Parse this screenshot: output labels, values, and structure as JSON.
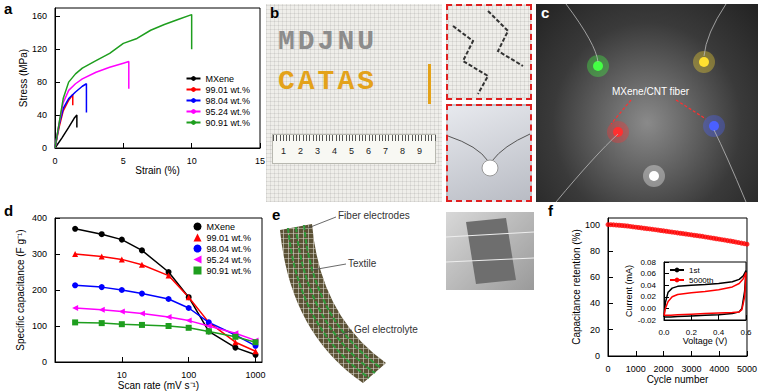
{
  "chart_data": [
    {
      "label": "a",
      "type": "line",
      "x_label": "Strain (%)",
      "y_label": "Stress (MPa)",
      "xlim": [
        0,
        15
      ],
      "xticks": [
        0,
        5,
        10,
        15
      ],
      "ylim": [
        0,
        170
      ],
      "yticks": [
        0,
        40,
        80,
        120,
        160
      ],
      "grid": false,
      "legend": "lower right",
      "series": [
        {
          "name": "MXene",
          "color": "#000000",
          "line_style": "solid",
          "x": [
            0,
            0.5,
            1,
            1.4,
            1.6,
            1.6
          ],
          "values": [
            0,
            12,
            25,
            36,
            40,
            25
          ]
        },
        {
          "name": "99.01 wt.%",
          "color": "#ff0000",
          "line_style": "solid",
          "x": [
            0,
            0.3,
            0.6,
            1,
            1.3,
            1.3
          ],
          "values": [
            0,
            25,
            45,
            58,
            65,
            52
          ]
        },
        {
          "name": "98.04 wt.%",
          "color": "#0000ff",
          "line_style": "solid",
          "x": [
            0,
            0.3,
            0.6,
            1,
            1.5,
            2,
            2.3,
            2.3
          ],
          "values": [
            0,
            28,
            48,
            60,
            68,
            75,
            78,
            43
          ]
        },
        {
          "name": "95.24 wt.%",
          "color": "#ff00ff",
          "line_style": "solid",
          "x": [
            0,
            0.3,
            0.6,
            1,
            1.5,
            2,
            3,
            4,
            5,
            5.4,
            5.4
          ],
          "values": [
            0,
            30,
            55,
            70,
            78,
            84,
            92,
            98,
            103,
            105,
            72
          ]
        },
        {
          "name": "90.91 wt.%",
          "color": "#1e9e1e",
          "line_style": "solid",
          "x": [
            0,
            0.3,
            0.6,
            1,
            1.5,
            2,
            3,
            4,
            5,
            6,
            7,
            8,
            9,
            10,
            10
          ],
          "values": [
            0,
            30,
            60,
            80,
            90,
            97,
            106,
            115,
            127,
            133,
            143,
            150,
            156,
            162,
            120
          ]
        }
      ]
    },
    {
      "label": "d",
      "type": "line",
      "x_label": "Scan rate (mV s⁻¹)",
      "y_label": "Specific capacitance (F g⁻¹)",
      "log": "x",
      "xlim": [
        1,
        1250
      ],
      "xticks": [
        10,
        100,
        1000
      ],
      "ylim": [
        0,
        400
      ],
      "yticks": [
        0,
        100,
        200,
        300,
        400
      ],
      "grid": false,
      "legend": "upper right",
      "x": [
        2,
        5,
        10,
        20,
        50,
        100,
        200,
        500,
        1000
      ],
      "series": [
        {
          "name": "MXene",
          "color": "#000000",
          "marker": "circle",
          "line_style": "solid",
          "values": [
            370,
            355,
            340,
            310,
            250,
            180,
            85,
            40,
            20
          ]
        },
        {
          "name": "99.01 wt.%",
          "color": "#ff0000",
          "marker": "triangle",
          "line_style": "solid",
          "values": [
            300,
            293,
            285,
            270,
            240,
            180,
            110,
            55,
            30
          ]
        },
        {
          "name": "98.04 wt.%",
          "color": "#0000ff",
          "marker": "circle",
          "line_style": "solid",
          "values": [
            213,
            208,
            200,
            190,
            175,
            150,
            110,
            75,
            45
          ]
        },
        {
          "name": "95.24 wt.%",
          "color": "#ff00ff",
          "marker": "triangle-left",
          "line_style": "solid",
          "values": [
            150,
            145,
            140,
            135,
            125,
            115,
            100,
            80,
            60
          ]
        },
        {
          "name": "90.91 wt.%",
          "color": "#1e9e1e",
          "marker": "square",
          "line_style": "solid",
          "values": [
            110,
            108,
            105,
            103,
            100,
            95,
            85,
            70,
            55
          ]
        }
      ]
    },
    {
      "label": "f",
      "type": "scatter",
      "x_label": "Cycle number",
      "y_label": "Capacitance retention (%)",
      "xlim": [
        0,
        5000
      ],
      "xticks": [
        0,
        1000,
        2000,
        3000,
        4000,
        5000
      ],
      "ylim": [
        0,
        105
      ],
      "yticks": [
        0,
        20,
        40,
        60,
        80,
        100
      ],
      "grid": false,
      "x": [
        0,
        100,
        200,
        300,
        400,
        500,
        600,
        700,
        800,
        900,
        1000,
        1100,
        1200,
        1300,
        1400,
        1500,
        1600,
        1700,
        1800,
        1900,
        2000,
        2100,
        2200,
        2300,
        2400,
        2500,
        2600,
        2700,
        2800,
        2900,
        3000,
        3100,
        3200,
        3300,
        3400,
        3500,
        3600,
        3700,
        3800,
        3900,
        4000,
        4100,
        4200,
        4300,
        4400,
        4500,
        4600,
        4700,
        4800,
        4900,
        5000
      ],
      "series": [
        {
          "color": "#ff0000",
          "marker": "circle",
          "values": [
            100.0,
            99.9,
            99.8,
            99.6,
            99.5,
            99.3,
            99.1,
            98.9,
            98.6,
            98.3,
            98.0,
            97.8,
            97.5,
            97.2,
            96.9,
            96.7,
            96.4,
            96.1,
            95.8,
            95.5,
            95.2,
            94.9,
            94.6,
            94.3,
            94.0,
            93.7,
            93.4,
            93.1,
            92.8,
            92.5,
            92.2,
            91.9,
            91.6,
            91.3,
            91.0,
            90.6,
            90.3,
            89.9,
            89.6,
            89.2,
            88.9,
            88.5,
            88.2,
            87.8,
            87.5,
            87.1,
            86.7,
            86.3,
            85.9,
            85.5,
            85.1
          ]
        }
      ],
      "inset": {
        "type": "line",
        "x_label": "Voltage (V)",
        "y_label": "Current (mA)",
        "xlim": [
          0,
          0.6
        ],
        "xticks": [
          {
            "value": 0,
            "label": "0.0"
          },
          0.2,
          0.4,
          0.6
        ],
        "ylim": [
          -0.02,
          0.08
        ],
        "yticks": [
          -0.02,
          {
            "value": 0,
            "label": "0.00"
          },
          0.02,
          0.04,
          0.06,
          0.08
        ],
        "grid": false,
        "legend": "upper left",
        "series": [
          {
            "name": "1st",
            "color": "#000000",
            "line_style": "solid",
            "x": [
              0,
              0.01,
              0.03,
              0.06,
              0.1,
              0.2,
              0.3,
              0.4,
              0.5,
              0.55,
              0.58,
              0.6,
              0.59,
              0.57,
              0.55,
              0.5,
              0.4,
              0.3,
              0.2,
              0.1,
              0.05,
              0
            ],
            "values": [
              -0.015,
              0.01,
              0.028,
              0.035,
              0.038,
              0.04,
              0.041,
              0.043,
              0.046,
              0.05,
              0.056,
              0.065,
              0.03,
              0,
              -0.006,
              -0.009,
              -0.011,
              -0.012,
              -0.013,
              -0.014,
              -0.015,
              -0.015
            ]
          },
          {
            "name": "5000th",
            "color": "#ff0000",
            "line_style": "solid",
            "x": [
              0,
              0.01,
              0.03,
              0.06,
              0.1,
              0.2,
              0.3,
              0.4,
              0.5,
              0.55,
              0.58,
              0.6,
              0.59,
              0.57,
              0.55,
              0.5,
              0.4,
              0.3,
              0.2,
              0.1,
              0.05,
              0
            ],
            "values": [
              -0.012,
              0,
              0.012,
              0.02,
              0.024,
              0.027,
              0.029,
              0.032,
              0.037,
              0.043,
              0.051,
              0.062,
              0.02,
              -0.002,
              -0.006,
              -0.007,
              -0.008,
              -0.009,
              -0.01,
              -0.011,
              -0.012,
              -0.012
            ]
          }
        ]
      }
    }
  ],
  "photos": [
    {
      "label": "b",
      "texts": [
        "MDJNU",
        "CATAS"
      ],
      "ruler": [
        1,
        2,
        3,
        4,
        5,
        6,
        7,
        8,
        9
      ]
    },
    {
      "label": "c",
      "texts": [
        "MXene/CNT fiber"
      ]
    },
    {
      "label": "e",
      "texts": [
        "Fiber electrodes",
        "Textile",
        "Gel electrolyte"
      ]
    }
  ]
}
